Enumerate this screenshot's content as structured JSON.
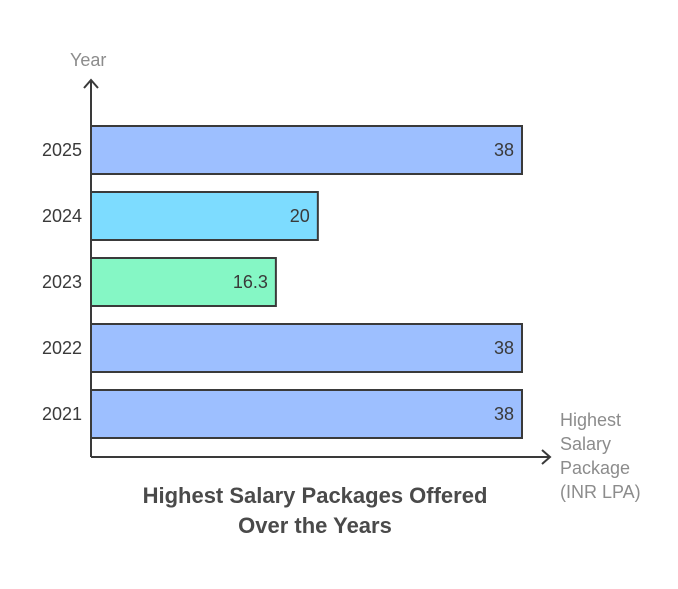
{
  "chart_data": {
    "type": "bar",
    "orientation": "horizontal",
    "title": [
      "Highest Salary Packages Offered",
      "Over the Years"
    ],
    "ylabel": "Year",
    "xlabel": [
      "Highest",
      "Salary",
      "Package",
      "(INR LPA)"
    ],
    "categories": [
      "2025",
      "2024",
      "2023",
      "2022",
      "2021"
    ],
    "values": [
      38,
      20,
      16.3,
      38,
      38
    ],
    "value_labels": [
      "38",
      "20",
      "16.3",
      "38",
      "38"
    ],
    "colors": [
      "#9dbfff",
      "#7ddcff",
      "#85f7c5",
      "#9dbfff",
      "#9dbfff"
    ],
    "xlim": [
      0,
      38
    ]
  }
}
